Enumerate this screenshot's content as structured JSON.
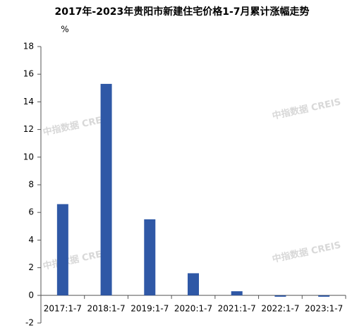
{
  "chart_data": {
    "type": "bar",
    "title": "2017年-2023年贵阳市新建住宅价格1-7月累计涨幅走势",
    "y_label": "%",
    "watermark": "中指数据 CREIS",
    "categories": [
      "2017:1-7",
      "2018:1-7",
      "2019:1-7",
      "2020:1-7",
      "2021:1-7",
      "2022:1-7",
      "2023:1-7"
    ],
    "values": [
      6.6,
      15.3,
      5.5,
      1.6,
      0.3,
      -0.1,
      -0.1
    ],
    "color": "#2f58a6",
    "ylim": [
      -2,
      18
    ],
    "yticks": [
      -2,
      0,
      2,
      4,
      6,
      8,
      10,
      12,
      14,
      16,
      18
    ],
    "grid": false
  }
}
